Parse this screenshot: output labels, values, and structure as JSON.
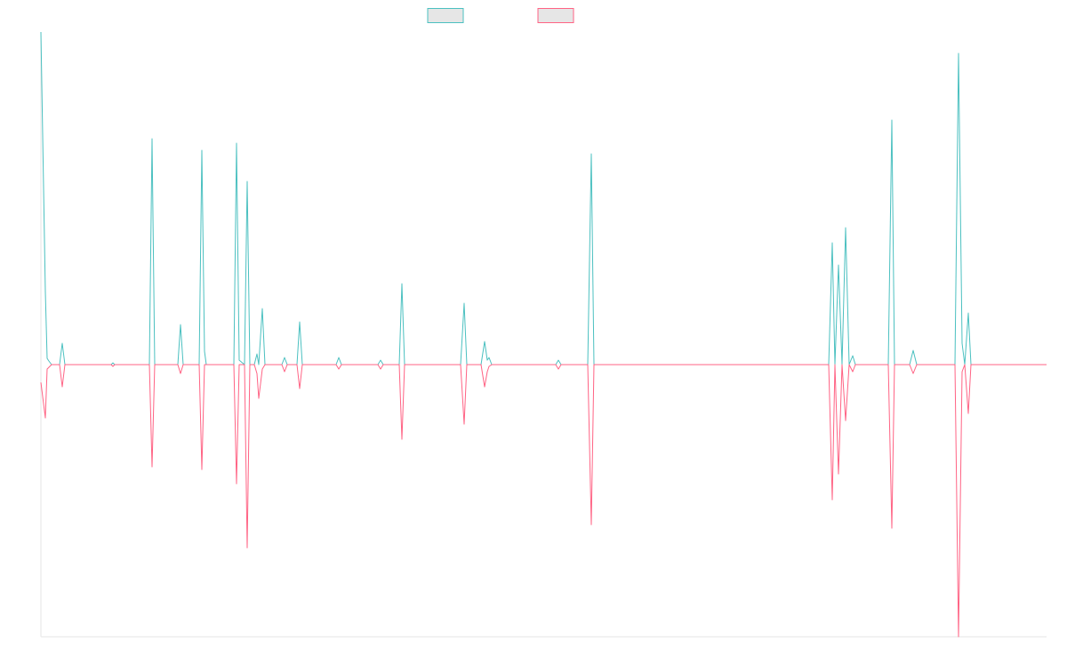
{
  "chart_data": {
    "type": "line",
    "x": [
      0,
      5,
      7,
      9,
      12,
      21,
      24,
      27,
      79,
      81,
      83,
      122,
      125,
      128,
      154,
      157,
      160,
      178,
      181,
      184,
      186,
      217,
      220,
      223,
      229,
      232,
      235,
      240,
      243,
      245,
      249,
      252,
      271,
      274,
      277,
      288,
      291,
      294,
      332,
      335,
      338,
      379,
      382,
      385,
      403,
      406,
      409,
      472,
      476,
      479,
      495,
      499,
      502,
      504,
      507,
      579,
      582,
      585,
      615,
      619,
      622,
      886,
      890,
      893,
      897,
      901,
      905,
      909,
      913,
      916,
      953,
      957,
      960,
      977,
      981,
      985,
      1028,
      1032,
      1036,
      1039,
      1043,
      1046,
      1131
    ],
    "xlim": [
      0,
      1131
    ],
    "ylim": [
      -306,
      374
    ],
    "series": [
      {
        "color": "#4bc0c0",
        "values": [
          374,
          82,
          7,
          4,
          0,
          0,
          24,
          0,
          0,
          2,
          0,
          0,
          254,
          0,
          0,
          45,
          0,
          0,
          241,
          15,
          0,
          0,
          249,
          5,
          0,
          206,
          0,
          0,
          12,
          0,
          63,
          0,
          0,
          8,
          0,
          0,
          48,
          0,
          0,
          8,
          0,
          0,
          5,
          0,
          0,
          91,
          0,
          0,
          69,
          0,
          0,
          26,
          5,
          8,
          0,
          0,
          5,
          0,
          0,
          237,
          0,
          0,
          137,
          0,
          112,
          0,
          154,
          0,
          10,
          0,
          0,
          275,
          0,
          0,
          16,
          0,
          0,
          350,
          24,
          0,
          58,
          0,
          0
        ]
      },
      {
        "color": "#ff6384",
        "values": [
          -20,
          -60,
          -5,
          -3,
          0,
          0,
          -25,
          0,
          0,
          -2,
          0,
          0,
          -115,
          0,
          0,
          -10,
          0,
          0,
          -118,
          0,
          0,
          0,
          -134,
          0,
          0,
          -206,
          0,
          0,
          -10,
          -38,
          -5,
          0,
          0,
          -8,
          0,
          0,
          -27,
          0,
          0,
          -5,
          0,
          0,
          -5,
          0,
          0,
          -84,
          0,
          0,
          -67,
          0,
          0,
          -25,
          -8,
          -2,
          0,
          0,
          -5,
          0,
          0,
          -180,
          0,
          0,
          -152,
          0,
          -123,
          0,
          -63,
          0,
          -8,
          0,
          0,
          -184,
          0,
          0,
          -10,
          0,
          0,
          -306,
          -8,
          0,
          -55,
          0,
          0
        ]
      }
    ]
  }
}
